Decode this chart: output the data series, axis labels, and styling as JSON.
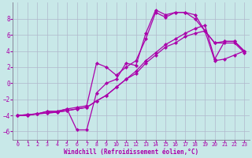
{
  "xlabel": "Windchill (Refroidissement éolien,°C)",
  "bg_color": "#c8e8e8",
  "line_color": "#aa00aa",
  "grid_color": "#b0b8cc",
  "xlim": [
    -0.5,
    23.5
  ],
  "ylim": [
    -7,
    10
  ],
  "yticks": [
    -6,
    -4,
    -2,
    0,
    2,
    4,
    6,
    8
  ],
  "xticks": [
    0,
    1,
    2,
    3,
    4,
    5,
    6,
    7,
    8,
    9,
    10,
    11,
    12,
    13,
    14,
    15,
    16,
    17,
    18,
    19,
    20,
    21,
    22,
    23
  ],
  "lines": [
    {
      "x": [
        0,
        1,
        2,
        3,
        4,
        5,
        6,
        7,
        8,
        9,
        10,
        11,
        12,
        13,
        14,
        15,
        16,
        17,
        18,
        19,
        20,
        21,
        22,
        23
      ],
      "y": [
        -4,
        -4,
        -3.8,
        -3.5,
        -3.5,
        -3.2,
        -5.8,
        -5.8,
        -1.2,
        0.0,
        0.5,
        2.5,
        2.2,
        6.2,
        9.1,
        8.5,
        8.8,
        8.8,
        8.0,
        6.5,
        5.0,
        5.0,
        5.0,
        3.8
      ]
    },
    {
      "x": [
        0,
        1,
        2,
        3,
        4,
        5,
        6,
        7,
        8,
        9,
        10,
        11,
        12,
        13,
        14,
        15,
        16,
        17,
        18,
        19,
        20,
        21,
        22,
        23
      ],
      "y": [
        -4,
        -4,
        -3.8,
        -3.5,
        -3.5,
        -3.2,
        -3.0,
        -2.8,
        2.5,
        2.0,
        1.0,
        2.0,
        2.8,
        5.5,
        8.8,
        8.2,
        8.8,
        8.8,
        8.5,
        6.5,
        5.0,
        5.2,
        5.2,
        4.0
      ]
    },
    {
      "x": [
        0,
        1,
        2,
        3,
        4,
        5,
        6,
        7,
        8,
        9,
        10,
        11,
        12,
        13,
        14,
        15,
        16,
        17,
        18,
        19,
        20,
        21,
        22,
        23
      ],
      "y": [
        -4,
        -3.9,
        -3.8,
        -3.7,
        -3.6,
        -3.4,
        -3.2,
        -3.0,
        -2.2,
        -1.5,
        -0.5,
        0.5,
        1.5,
        2.8,
        3.8,
        4.8,
        5.5,
        6.2,
        6.8,
        7.2,
        3.0,
        5.2,
        5.2,
        4.0
      ]
    },
    {
      "x": [
        0,
        1,
        2,
        3,
        4,
        5,
        6,
        7,
        8,
        9,
        10,
        11,
        12,
        13,
        14,
        15,
        16,
        17,
        18,
        19,
        20,
        21,
        22,
        23
      ],
      "y": [
        -4,
        -3.9,
        -3.8,
        -3.7,
        -3.6,
        -3.4,
        -3.2,
        -3.0,
        -2.2,
        -1.5,
        -0.5,
        0.5,
        1.2,
        2.5,
        3.5,
        4.5,
        5.0,
        5.8,
        6.2,
        6.5,
        2.8,
        3.0,
        3.5,
        4.0
      ]
    }
  ],
  "marker": "D",
  "marker_size": 2.2,
  "line_width": 0.9,
  "xlabel_fontsize": 5.5,
  "tick_fontsize_x": 4.8,
  "tick_fontsize_y": 5.5
}
